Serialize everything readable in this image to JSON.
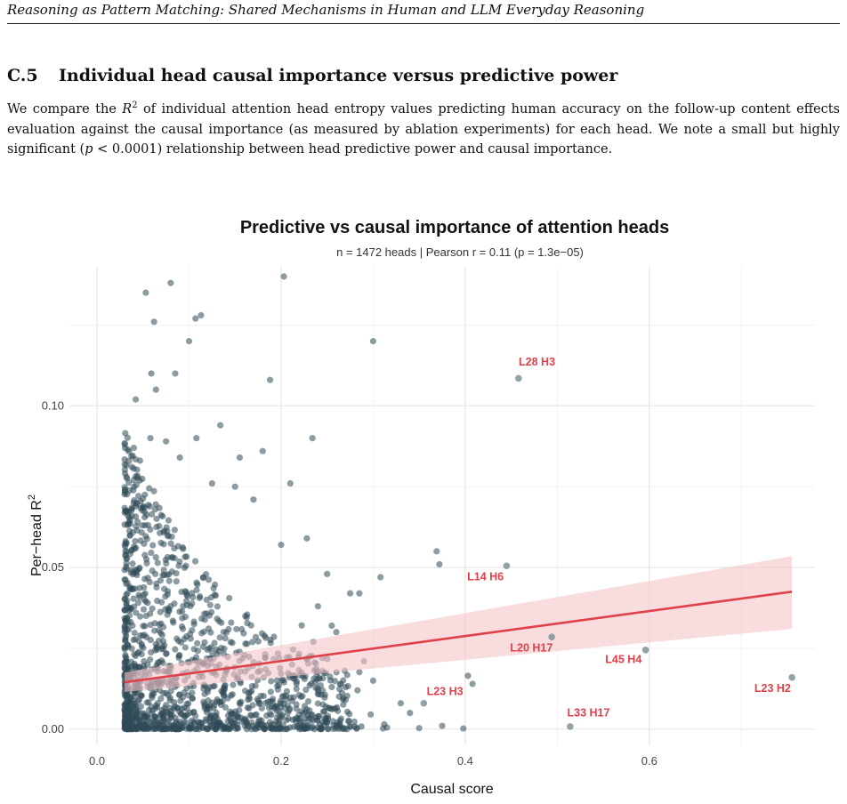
{
  "running_header": "Reasoning as Pattern Matching: Shared Mechanisms in Human and LLM Everyday Reasoning",
  "section": {
    "number": "C.5",
    "title": "Individual head causal importance versus predictive power"
  },
  "paragraph": {
    "p1": "We compare the ",
    "r": "R",
    "sq": "2",
    "p2": " of individual attention head entropy values predicting human accuracy on the follow-up content effects evaluation against the causal importance (as measured by ablation experiments) for each head. We note a small but highly significant (",
    "p": "p",
    "p3": " < 0.0001) relationship between head predictive power and causal importance."
  },
  "chart_data": {
    "type": "scatter",
    "title": "Predictive vs causal importance of attention heads",
    "subtitle": "n = 1472 heads  |  Pearson r = 0.11 (p = 1.3e−05)",
    "xlabel": "Causal score",
    "ylabel": "Per−head  R",
    "ylabel_sup": "2",
    "xlim": [
      -0.03,
      0.78
    ],
    "ylim": [
      -0.005,
      0.143
    ],
    "xticks": [
      0.0,
      0.2,
      0.4,
      0.6
    ],
    "xtick_labels": [
      "0.0",
      "0.2",
      "0.4",
      "0.6"
    ],
    "yticks": [
      0.0,
      0.05,
      0.1
    ],
    "ytick_labels": [
      "0.00",
      "0.05",
      "0.10"
    ],
    "grid": true,
    "colors": {
      "points": "#2f4b57",
      "fit_line": "#e0404a",
      "band": "#f5c4c8",
      "label": "#e0404a",
      "grid": "#e6e6e6"
    },
    "fit": {
      "x": [
        0.03,
        0.755
      ],
      "y": [
        0.0145,
        0.0425
      ],
      "band_upper": [
        0.0175,
        0.0535
      ],
      "band_lower": [
        0.0115,
        0.031
      ]
    },
    "labeled_points": [
      {
        "label": "L28 H3",
        "x": 0.458,
        "y": 0.1085,
        "label_x": 0.478,
        "label_y": 0.1125
      },
      {
        "label": "L14 H6",
        "x": 0.445,
        "y": 0.0505,
        "label_x": 0.422,
        "label_y": 0.046
      },
      {
        "label": "L20 H17",
        "x": 0.494,
        "y": 0.0285,
        "label_x": 0.472,
        "label_y": 0.024
      },
      {
        "label": "L45 H4",
        "x": 0.596,
        "y": 0.0245,
        "label_x": 0.572,
        "label_y": 0.0205
      },
      {
        "label": "L23 H3",
        "x": 0.355,
        "y": 0.008,
        "label_x": 0.378,
        "label_y": 0.0105
      },
      {
        "label": "L33 H17",
        "x": 0.514,
        "y": 0.0008,
        "label_x": 0.534,
        "label_y": 0.004
      },
      {
        "label": "L23 H2",
        "x": 0.755,
        "y": 0.016,
        "label_x": 0.734,
        "label_y": 0.0115
      }
    ],
    "outlier_points": [
      {
        "x": 0.08,
        "y": 0.138
      },
      {
        "x": 0.203,
        "y": 0.14
      },
      {
        "x": 0.053,
        "y": 0.135
      },
      {
        "x": 0.062,
        "y": 0.126
      },
      {
        "x": 0.113,
        "y": 0.128
      },
      {
        "x": 0.107,
        "y": 0.127
      },
      {
        "x": 0.1,
        "y": 0.12
      },
      {
        "x": 0.3,
        "y": 0.12
      },
      {
        "x": 0.059,
        "y": 0.11
      },
      {
        "x": 0.085,
        "y": 0.11
      },
      {
        "x": 0.064,
        "y": 0.105
      },
      {
        "x": 0.188,
        "y": 0.108
      },
      {
        "x": 0.042,
        "y": 0.102
      },
      {
        "x": 0.058,
        "y": 0.09
      },
      {
        "x": 0.075,
        "y": 0.089
      },
      {
        "x": 0.108,
        "y": 0.09
      },
      {
        "x": 0.134,
        "y": 0.094
      },
      {
        "x": 0.234,
        "y": 0.09
      },
      {
        "x": 0.04,
        "y": 0.087
      },
      {
        "x": 0.09,
        "y": 0.084
      },
      {
        "x": 0.155,
        "y": 0.084
      },
      {
        "x": 0.18,
        "y": 0.086
      },
      {
        "x": 0.032,
        "y": 0.078
      },
      {
        "x": 0.125,
        "y": 0.076
      },
      {
        "x": 0.21,
        "y": 0.076
      },
      {
        "x": 0.04,
        "y": 0.075
      },
      {
        "x": 0.15,
        "y": 0.075
      },
      {
        "x": 0.17,
        "y": 0.071
      },
      {
        "x": 0.2,
        "y": 0.057
      },
      {
        "x": 0.228,
        "y": 0.059
      },
      {
        "x": 0.25,
        "y": 0.048
      },
      {
        "x": 0.369,
        "y": 0.055
      },
      {
        "x": 0.372,
        "y": 0.051
      },
      {
        "x": 0.308,
        "y": 0.047
      },
      {
        "x": 0.275,
        "y": 0.042
      },
      {
        "x": 0.285,
        "y": 0.042
      },
      {
        "x": 0.24,
        "y": 0.038
      },
      {
        "x": 0.255,
        "y": 0.032
      },
      {
        "x": 0.26,
        "y": 0.03
      },
      {
        "x": 0.29,
        "y": 0.021
      },
      {
        "x": 0.235,
        "y": 0.027
      },
      {
        "x": 0.245,
        "y": 0.022
      },
      {
        "x": 0.3,
        "y": 0.015
      },
      {
        "x": 0.283,
        "y": 0.012
      },
      {
        "x": 0.265,
        "y": 0.014
      },
      {
        "x": 0.403,
        "y": 0.0165
      },
      {
        "x": 0.408,
        "y": 0.014
      },
      {
        "x": 0.312,
        "y": 0.0015
      },
      {
        "x": 0.315,
        "y": 0.0005
      },
      {
        "x": 0.35,
        "y": 0.0003
      },
      {
        "x": 0.375,
        "y": 0.001
      },
      {
        "x": 0.398,
        "y": 0.0002
      },
      {
        "x": 0.28,
        "y": 0.0008
      },
      {
        "x": 0.26,
        "y": 0.0012
      },
      {
        "x": 0.25,
        "y": 0.002
      },
      {
        "x": 0.27,
        "y": 0.009
      },
      {
        "x": 0.33,
        "y": 0.008
      },
      {
        "x": 0.34,
        "y": 0.005
      },
      {
        "x": 0.22,
        "y": 0.0
      },
      {
        "x": 0.24,
        "y": 0.0005
      }
    ],
    "cloud": {
      "count": 1405
    }
  }
}
